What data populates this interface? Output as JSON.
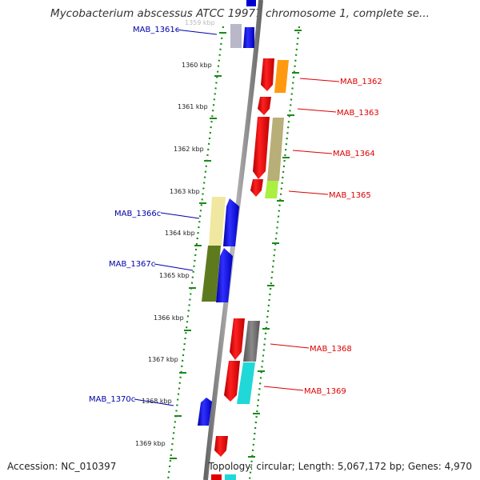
{
  "title": "Mycobacterium abscessus ATCC 19977 chromosome 1, complete se...",
  "footer": {
    "accession": "Accession: NC_010397",
    "summary": "Topology: circular; Length: 5,067,172 bp; Genes: 4,970"
  },
  "ticks": [
    "1359 kbp",
    "1360 kbp",
    "1361 kbp",
    "1362 kbp",
    "1363 kbp",
    "1364 kbp",
    "1365 kbp",
    "1366 kbp",
    "1367 kbp",
    "1368 kbp",
    "1369 kbp"
  ],
  "genes_minus": [
    "MAB_1361c",
    "MAB_1366c",
    "MAB_1367c",
    "MAB_1370c"
  ],
  "genes_plus": [
    "MAB_1362",
    "MAB_1363",
    "MAB_1364",
    "MAB_1365",
    "MAB_1368",
    "MAB_1369"
  ],
  "colors": {
    "minus_label": "#0000aa",
    "plus_label": "#dd0000",
    "backbone": "#888888",
    "dots": "#1a8a1a"
  }
}
